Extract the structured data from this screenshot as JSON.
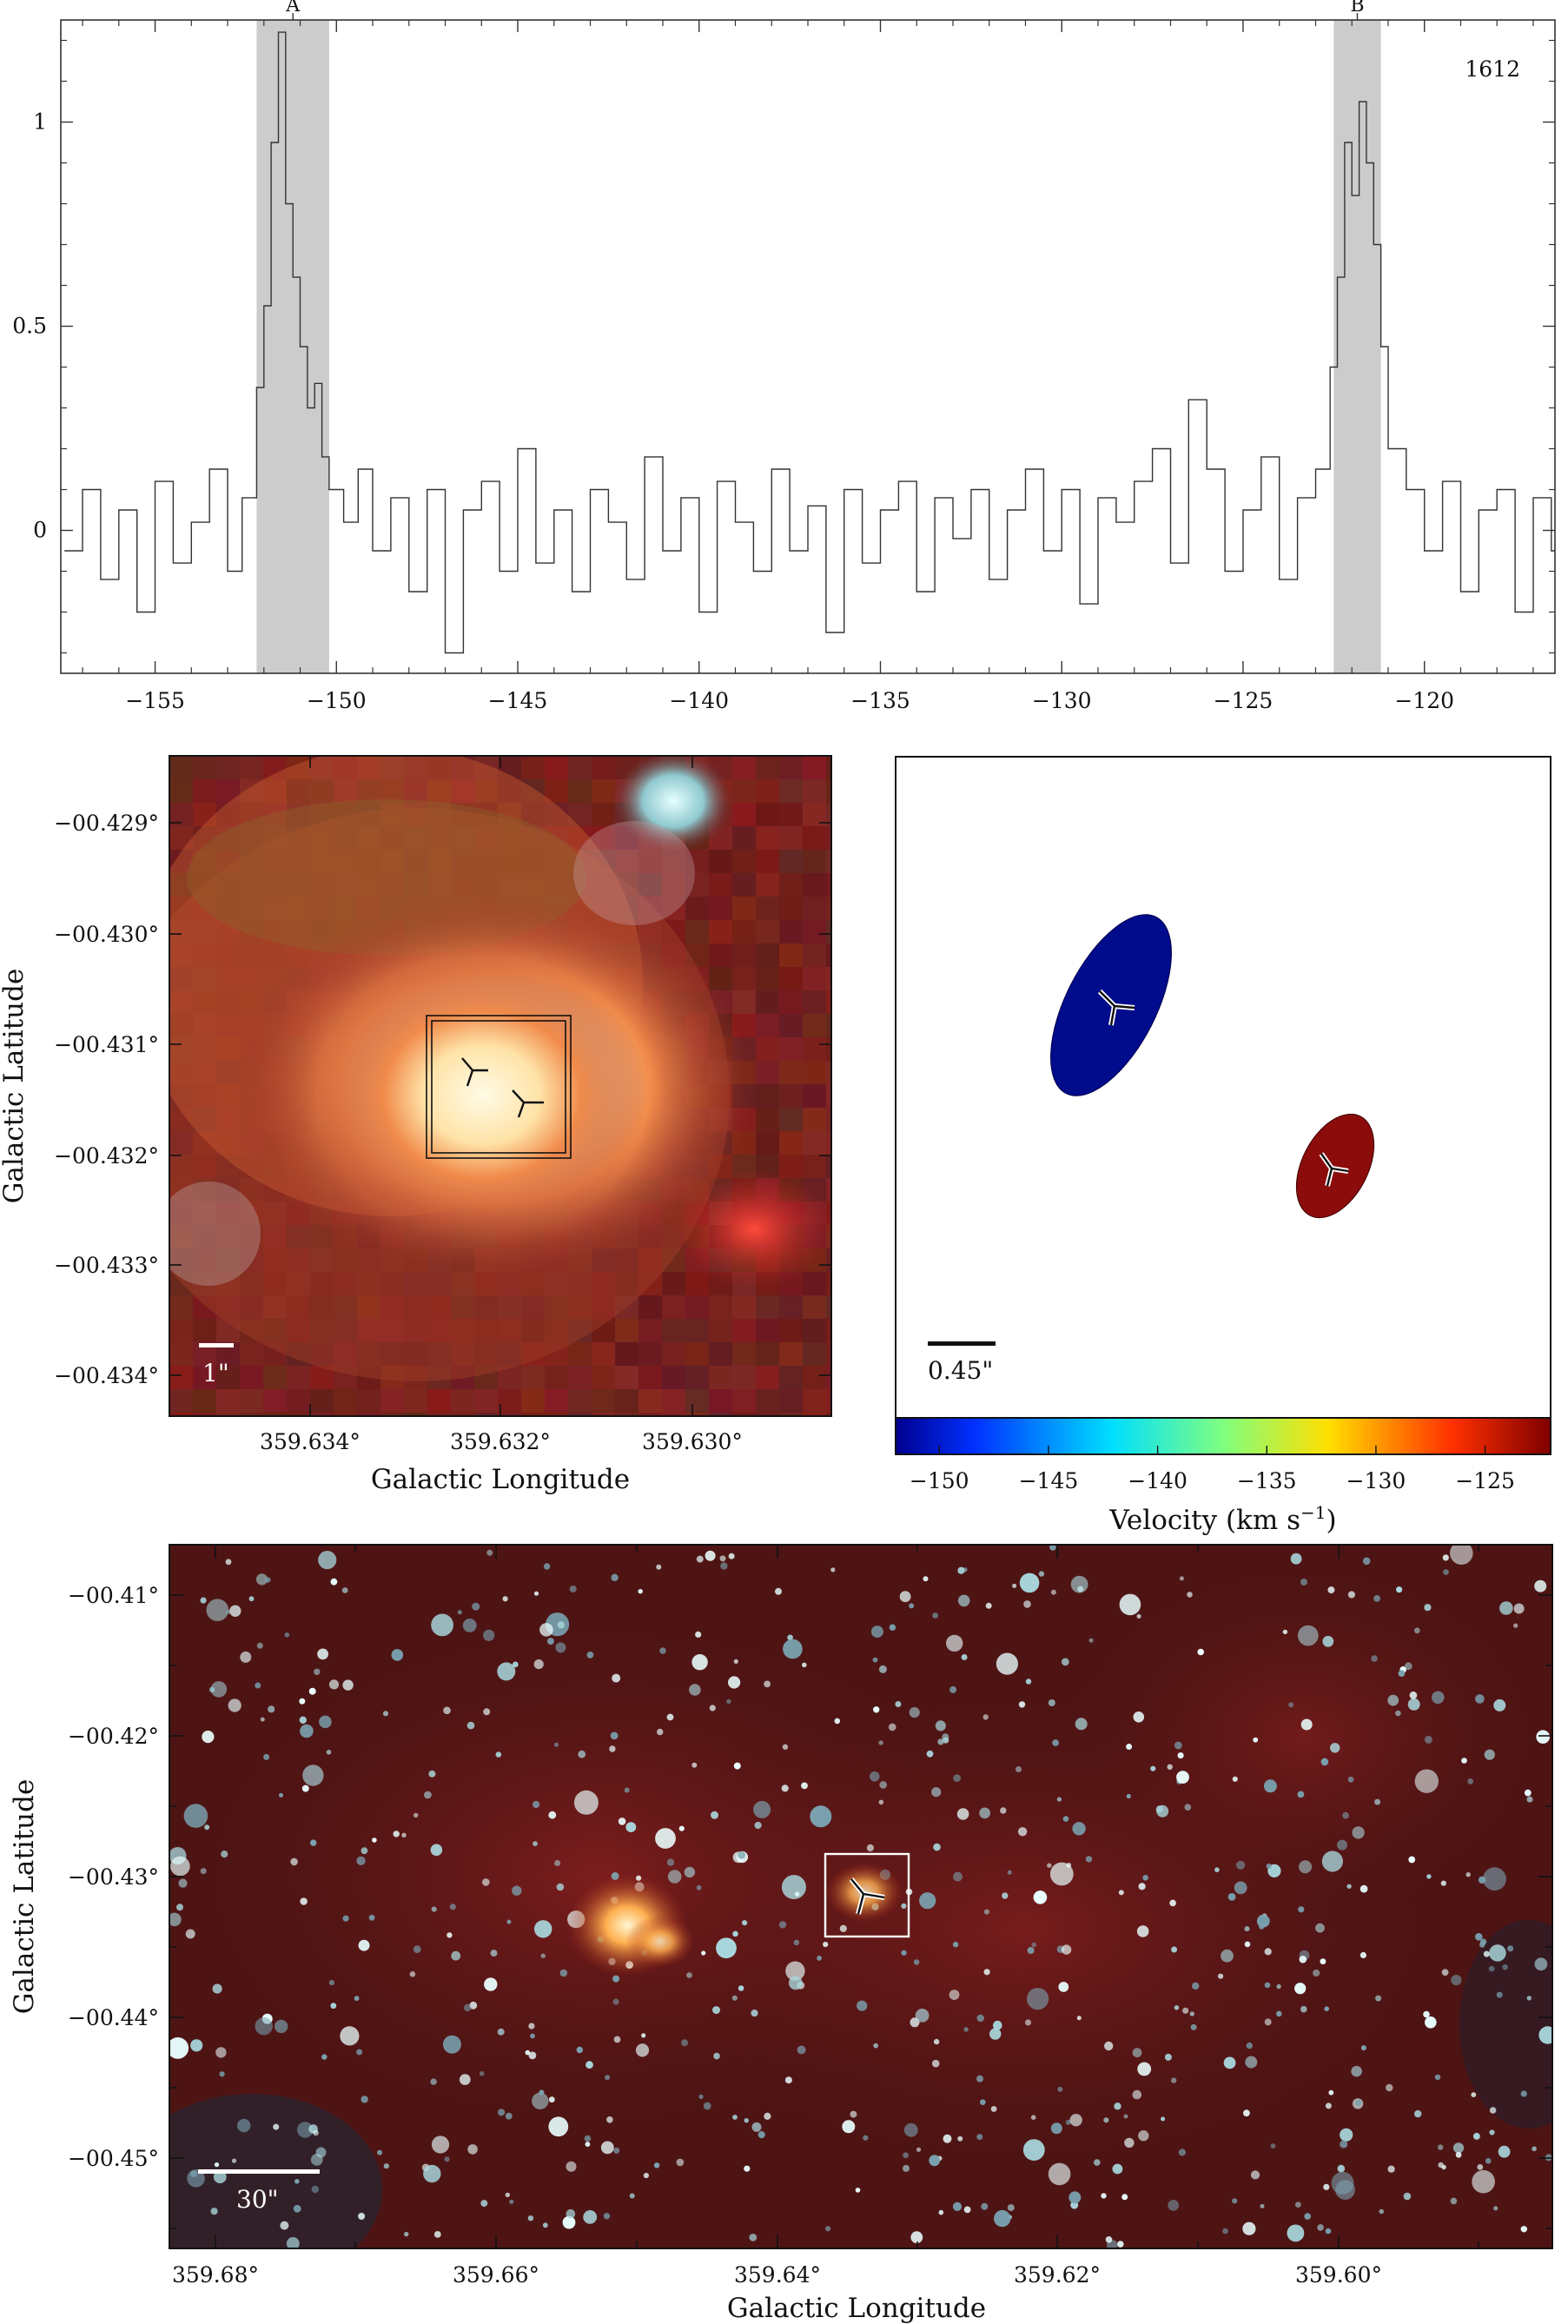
{
  "chart_data": [
    {
      "type": "line",
      "panel": "spectrum",
      "annotation": "1612",
      "xlim": [
        -157.6,
        -116.4
      ],
      "ylim": [
        -0.35,
        1.25
      ],
      "x_ticks": [
        -155,
        -150,
        -145,
        -140,
        -135,
        -130,
        -125,
        -120
      ],
      "x_tick_labels": [
        "−155",
        "−150",
        "−145",
        "−140",
        "−135",
        "−130",
        "−125",
        "−120"
      ],
      "y_ticks": [
        0,
        0.5,
        1
      ],
      "y_tick_labels": [
        "0",
        "0.5",
        "1"
      ],
      "shaded_bands": [
        {
          "label": "A",
          "from": -152.2,
          "to": -150.2,
          "color": "#cccccc"
        },
        {
          "label": "B",
          "from": -122.5,
          "to": -121.2,
          "color": "#cccccc"
        }
      ],
      "series": [
        {
          "x": [
            -157.5,
            -157.0,
            -156.5,
            -156.0,
            -155.5,
            -155.0,
            -154.5,
            -154.0,
            -153.5,
            -153.0,
            -152.6,
            -152.2,
            -152.0,
            -151.8,
            -151.6,
            -151.4,
            -151.2,
            -151.0,
            -150.8,
            -150.6,
            -150.4,
            -150.2,
            -149.8,
            -149.4,
            -149.0,
            -148.5,
            -148.0,
            -147.5,
            -147.0,
            -146.5,
            -146.0,
            -145.5,
            -145.0,
            -144.5,
            -144.0,
            -143.5,
            -143.0,
            -142.5,
            -142.0,
            -141.5,
            -141.0,
            -140.5,
            -140.0,
            -139.5,
            -139.0,
            -138.5,
            -138.0,
            -137.5,
            -137.0,
            -136.5,
            -136.0,
            -135.5,
            -135.0,
            -134.5,
            -134.0,
            -133.5,
            -133.0,
            -132.5,
            -132.0,
            -131.5,
            -131.0,
            -130.5,
            -130.0,
            -129.5,
            -129.0,
            -128.5,
            -128.0,
            -127.5,
            -127.0,
            -126.5,
            -126.0,
            -125.5,
            -125.0,
            -124.5,
            -124.0,
            -123.5,
            -123.0,
            -122.6,
            -122.4,
            -122.2,
            -122.0,
            -121.8,
            -121.6,
            -121.4,
            -121.2,
            -121.0,
            -120.5,
            -120.0,
            -119.5,
            -119.0,
            -118.5,
            -118.0,
            -117.5,
            -117.0,
            -116.5
          ],
          "y": [
            -0.05,
            0.1,
            -0.12,
            0.05,
            -0.2,
            0.12,
            -0.08,
            0.02,
            0.15,
            -0.1,
            0.08,
            0.35,
            0.55,
            0.95,
            1.22,
            0.8,
            0.62,
            0.45,
            0.3,
            0.36,
            0.18,
            0.1,
            0.02,
            0.15,
            -0.05,
            0.08,
            -0.15,
            0.1,
            -0.3,
            0.05,
            0.12,
            -0.1,
            0.2,
            -0.08,
            0.05,
            -0.15,
            0.1,
            0.02,
            -0.12,
            0.18,
            -0.05,
            0.08,
            -0.2,
            0.12,
            0.02,
            -0.1,
            0.15,
            -0.05,
            0.06,
            -0.25,
            0.1,
            -0.08,
            0.05,
            0.12,
            -0.15,
            0.08,
            -0.02,
            0.1,
            -0.12,
            0.05,
            0.15,
            -0.05,
            0.1,
            -0.18,
            0.08,
            0.02,
            0.12,
            0.2,
            -0.08,
            0.32,
            0.15,
            -0.1,
            0.05,
            0.18,
            -0.12,
            0.08,
            0.15,
            0.4,
            0.62,
            0.95,
            0.82,
            1.05,
            0.9,
            0.7,
            0.45,
            0.2,
            0.1,
            -0.05,
            0.12,
            -0.15,
            0.05,
            0.1,
            -0.2,
            0.08,
            -0.05
          ]
        }
      ]
    },
    {
      "type": "heatmap",
      "panel": "zoom-image",
      "xlabel": "Galactic Longitude",
      "ylabel": "Galactic Latitude",
      "x_tick_labels": [
        "359.634°",
        "359.632°",
        "359.630°"
      ],
      "y_tick_labels": [
        "−00.429°",
        "−00.430°",
        "−00.431°",
        "−00.432°",
        "−00.433°",
        "−00.434°"
      ],
      "scale_bar": "1\"",
      "markers": 2
    },
    {
      "type": "scatter",
      "panel": "velocity-map",
      "scale_bar": "0.45\"",
      "colorbar_label": "Velocity (km s$^{-1}$)",
      "colorbar_label_text": "Velocity (km s",
      "colorbar_label_sup": "−1",
      "colorbar_label_close": ")",
      "colorbar_range": [
        -152,
        -122
      ],
      "colorbar_ticks": [
        "−150",
        "−145",
        "−140",
        "−135",
        "−130",
        "−125"
      ],
      "colorbar_tick_values": [
        -150,
        -145,
        -140,
        -135,
        -130,
        -125
      ],
      "points": [
        {
          "velocity": -151.2,
          "color": "#000c8c"
        },
        {
          "velocity": -121.8,
          "color": "#8c0c0c"
        }
      ]
    },
    {
      "type": "heatmap",
      "panel": "wide-image",
      "xlabel": "Galactic Longitude",
      "ylabel": "Galactic Latitude",
      "x_tick_labels": [
        "359.68°",
        "359.66°",
        "359.64°",
        "359.62°",
        "359.60°"
      ],
      "y_tick_labels": [
        "−00.41°",
        "−00.42°",
        "−00.43°",
        "−00.44°",
        "−00.45°"
      ],
      "scale_bar": "30\""
    }
  ],
  "colors": {
    "band": "#cccccc",
    "image_background": "#5a1414",
    "colorbar": [
      "#00008f",
      "#0050ff",
      "#00dfff",
      "#7fff7f",
      "#ffdf00",
      "#ff5000",
      "#7f0000"
    ]
  }
}
